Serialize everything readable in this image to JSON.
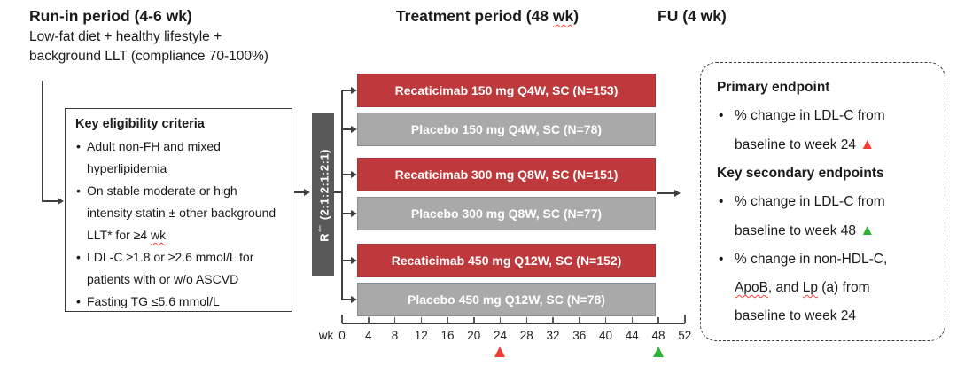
{
  "colors": {
    "treatment_bar": "#be393c",
    "placebo_bar": "#a9a9a9",
    "randomization_bar": "#595959",
    "week24_marker": "#ee3d30",
    "week48_marker": "#2eb135"
  },
  "phases": {
    "run_in": {
      "title": "Run-in period (4-6 wk)",
      "subtitle_lines": [
        "Low-fat diet + healthy lifestyle +",
        "background LLT (compliance 70-100%)"
      ]
    },
    "treatment": {
      "title_rich": [
        {
          "text": "Treatment period (48 "
        },
        {
          "text": "wk",
          "wavy": true
        },
        {
          "text": ")"
        }
      ]
    },
    "follow_up": {
      "title": "FU (4 wk)"
    }
  },
  "eligibility": {
    "title": "Key eligibility criteria",
    "bullets": [
      {
        "rich": [
          {
            "text": "Adult non-FH and mixed hyperlipidemia"
          }
        ]
      },
      {
        "rich": [
          {
            "text": "On stable moderate or high intensity statin ± other background LLT* for ≥4 "
          },
          {
            "text": "wk",
            "wavy": true
          }
        ]
      },
      {
        "rich": [
          {
            "text": "LDL-C ≥1.8 or ≥2.6 mmol/L for patients with or w/o ASCVD"
          }
        ]
      },
      {
        "rich": [
          {
            "text": "Fasting TG ≤5.6 mmol/L"
          }
        ]
      }
    ]
  },
  "randomization": {
    "label_rich": [
      {
        "text": "R"
      },
      {
        "text": "†",
        "sup": true
      },
      {
        "text": " (2:1:2:1:2:1)"
      }
    ]
  },
  "arms": [
    {
      "label": "Recaticimab 150 mg Q4W, SC (N=153)",
      "type": "drug"
    },
    {
      "label": "Placebo 150 mg Q4W, SC (N=78)",
      "type": "placebo"
    },
    {
      "label": "Recaticimab 300 mg Q8W, SC (N=151)",
      "type": "drug"
    },
    {
      "label": "Placebo 300 mg Q8W, SC (N=77)",
      "type": "placebo"
    },
    {
      "label": "Recaticimab 450 mg Q12W, SC (N=152)",
      "type": "drug"
    },
    {
      "label": "Placebo 450 mg Q12W, SC (N=78)",
      "type": "placebo"
    }
  ],
  "timeline": {
    "unit": "wk",
    "ticks": [
      "0",
      "4",
      "8",
      "12",
      "16",
      "20",
      "24",
      "28",
      "32",
      "36",
      "40",
      "44",
      "48",
      "52"
    ],
    "markers": [
      {
        "week": 24,
        "color": "red"
      },
      {
        "week": 48,
        "color": "green"
      }
    ]
  },
  "endpoints": {
    "primary_title": "Primary endpoint",
    "primary": [
      {
        "rich": [
          {
            "text": "% change in LDL-C from baseline to week 24 "
          },
          {
            "text": "▲",
            "color": "red"
          }
        ]
      }
    ],
    "secondary_title": "Key secondary endpoints",
    "secondary": [
      {
        "rich": [
          {
            "text": "% change in LDL-C from baseline to week 48 "
          },
          {
            "text": "▲",
            "color": "green"
          }
        ]
      },
      {
        "rich": [
          {
            "text": "% change in non-HDL-C, "
          },
          {
            "text": "ApoB",
            "wavy": true
          },
          {
            "text": ", and "
          },
          {
            "text": "Lp",
            "wavy": true
          },
          {
            "text": " (a) from baseline to week 24"
          }
        ]
      }
    ]
  }
}
